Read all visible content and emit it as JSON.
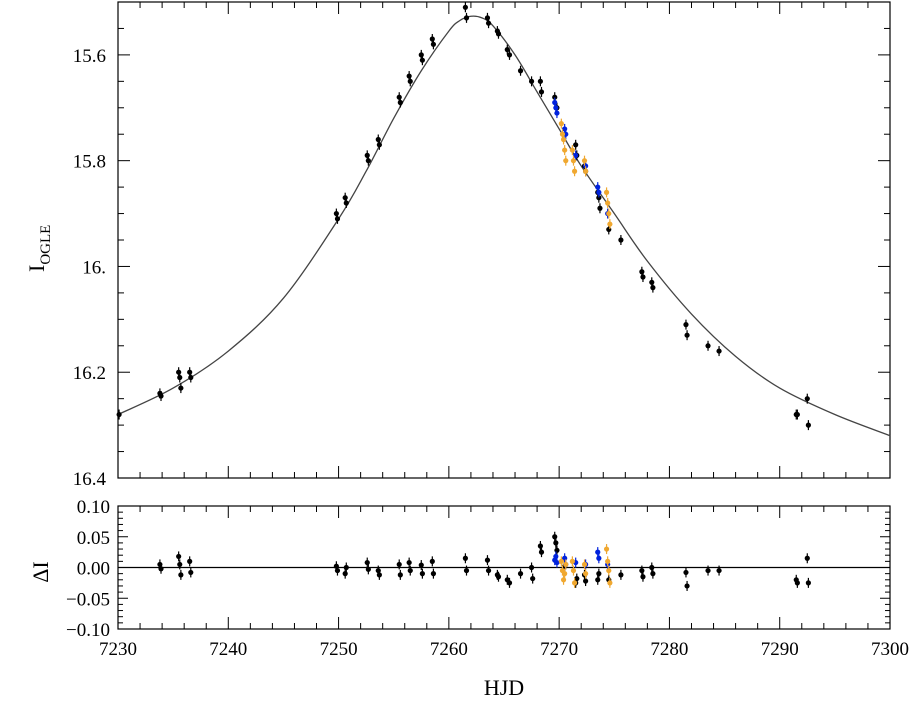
{
  "chart_data": [
    {
      "type": "scatter",
      "ylabel_main": "I",
      "ylabel_sub": "OGLE",
      "xlim": [
        7230,
        7300
      ],
      "ylim": [
        16.4,
        15.5
      ],
      "y_inverted": true,
      "y_ticks": [
        15.6,
        15.8,
        16.0,
        16.2,
        16.4
      ],
      "y_tick_labels": [
        "15.6",
        "15.8",
        "16.",
        "16.2",
        "16.4"
      ],
      "model_curve": {
        "name": "",
        "color": "#444444",
        "x": [
          7230,
          7235,
          7240,
          7245,
          7250,
          7252.5,
          7255,
          7257.5,
          7260,
          7261,
          7262,
          7263,
          7264,
          7266,
          7268,
          7270,
          7272,
          7275,
          7278,
          7282,
          7286,
          7290,
          7295,
          7300
        ],
        "y": [
          16.28,
          16.23,
          16.16,
          16.06,
          15.91,
          15.82,
          15.72,
          15.63,
          15.555,
          15.535,
          15.527,
          15.53,
          15.545,
          15.6,
          15.67,
          15.74,
          15.81,
          15.9,
          15.99,
          16.09,
          16.17,
          16.23,
          16.28,
          16.32
        ]
      },
      "series": [
        {
          "name": "",
          "color": "#000000",
          "points": [
            [
              7230.1,
              16.28
            ],
            [
              7233.8,
              16.24
            ],
            [
              7233.9,
              16.245
            ],
            [
              7235.5,
              16.2
            ],
            [
              7235.6,
              16.21
            ],
            [
              7235.7,
              16.23
            ],
            [
              7236.5,
              16.2
            ],
            [
              7236.6,
              16.21
            ],
            [
              7249.8,
              15.9
            ],
            [
              7249.9,
              15.91
            ],
            [
              7250.6,
              15.87
            ],
            [
              7250.7,
              15.88
            ],
            [
              7252.6,
              15.79
            ],
            [
              7252.7,
              15.8
            ],
            [
              7253.6,
              15.76
            ],
            [
              7253.7,
              15.77
            ],
            [
              7255.5,
              15.68
            ],
            [
              7255.6,
              15.69
            ],
            [
              7256.4,
              15.64
            ],
            [
              7256.5,
              15.65
            ],
            [
              7257.5,
              15.6
            ],
            [
              7257.6,
              15.61
            ],
            [
              7258.5,
              15.57
            ],
            [
              7258.6,
              15.58
            ],
            [
              7261.5,
              15.51
            ],
            [
              7261.6,
              15.53
            ],
            [
              7263.5,
              15.53
            ],
            [
              7263.6,
              15.54
            ],
            [
              7264.4,
              15.555
            ],
            [
              7264.5,
              15.56
            ],
            [
              7265.3,
              15.59
            ],
            [
              7265.5,
              15.6
            ],
            [
              7266.5,
              15.63
            ],
            [
              7267.5,
              15.65
            ],
            [
              7268.3,
              15.65
            ],
            [
              7268.4,
              15.67
            ],
            [
              7269.6,
              15.68
            ],
            [
              7269.8,
              15.7
            ],
            [
              7271.5,
              15.77
            ],
            [
              7271.6,
              15.79
            ],
            [
              7272.3,
              15.81
            ],
            [
              7272.4,
              15.82
            ],
            [
              7273.5,
              15.86
            ],
            [
              7273.6,
              15.87
            ],
            [
              7273.7,
              15.89
            ],
            [
              7274.5,
              15.93
            ],
            [
              7275.6,
              15.95
            ],
            [
              7277.5,
              16.01
            ],
            [
              7277.6,
              16.02
            ],
            [
              7278.4,
              16.03
            ],
            [
              7278.5,
              16.04
            ],
            [
              7281.5,
              16.11
            ],
            [
              7281.6,
              16.13
            ],
            [
              7283.5,
              16.15
            ],
            [
              7284.5,
              16.16
            ],
            [
              7291.5,
              16.28
            ],
            [
              7291.6,
              16.28
            ],
            [
              7292.5,
              16.25
            ],
            [
              7292.6,
              16.3
            ]
          ]
        },
        {
          "name": "",
          "color": "#0022dd",
          "points": [
            [
              7269.6,
              15.69
            ],
            [
              7269.7,
              15.7
            ],
            [
              7269.8,
              15.71
            ],
            [
              7270.5,
              15.74
            ],
            [
              7270.6,
              15.75
            ],
            [
              7271.5,
              15.79
            ],
            [
              7272.4,
              15.81
            ],
            [
              7273.5,
              15.85
            ],
            [
              7273.6,
              15.86
            ],
            [
              7274.4,
              15.9
            ]
          ]
        },
        {
          "name": "",
          "color": "#f0a830",
          "points": [
            [
              7270.2,
              15.73
            ],
            [
              7270.3,
              15.75
            ],
            [
              7270.4,
              15.76
            ],
            [
              7270.5,
              15.78
            ],
            [
              7270.6,
              15.8
            ],
            [
              7271.2,
              15.78
            ],
            [
              7271.3,
              15.8
            ],
            [
              7271.4,
              15.82
            ],
            [
              7272.3,
              15.8
            ],
            [
              7272.4,
              15.82
            ],
            [
              7274.3,
              15.86
            ],
            [
              7274.4,
              15.88
            ],
            [
              7274.5,
              15.9
            ],
            [
              7274.6,
              15.92
            ]
          ]
        }
      ]
    },
    {
      "type": "scatter",
      "xlabel": "HJD",
      "ylabel": "ΔI",
      "xlim": [
        7230,
        7300
      ],
      "ylim": [
        -0.1,
        0.1
      ],
      "x_ticks": [
        7230,
        7240,
        7250,
        7260,
        7270,
        7280,
        7290,
        7300
      ],
      "x_tick_labels": [
        "7230",
        "7240",
        "7250",
        "7260",
        "7270",
        "7280",
        "7290",
        "7300"
      ],
      "y_ticks": [
        0.1,
        0.05,
        0.0,
        -0.05,
        -0.1
      ],
      "y_tick_labels": [
        "0.10",
        "0.05",
        "0.00",
        "−0.05",
        "−0.10"
      ],
      "zero_line": 0,
      "series": [
        {
          "name": "",
          "color": "#000000",
          "points": [
            [
              7233.8,
              0.005
            ],
            [
              7233.9,
              -0.002
            ],
            [
              7235.5,
              0.018
            ],
            [
              7235.6,
              0.005
            ],
            [
              7235.7,
              -0.012
            ],
            [
              7236.5,
              0.01
            ],
            [
              7236.6,
              -0.008
            ],
            [
              7249.8,
              0.002
            ],
            [
              7249.9,
              -0.005
            ],
            [
              7250.6,
              -0.01
            ],
            [
              7250.7,
              0.0
            ],
            [
              7252.6,
              0.008
            ],
            [
              7252.7,
              -0.003
            ],
            [
              7253.6,
              -0.005
            ],
            [
              7253.7,
              -0.012
            ],
            [
              7255.5,
              0.005
            ],
            [
              7255.6,
              -0.012
            ],
            [
              7256.4,
              0.008
            ],
            [
              7256.5,
              -0.005
            ],
            [
              7257.5,
              0.004
            ],
            [
              7257.6,
              -0.01
            ],
            [
              7258.5,
              0.01
            ],
            [
              7258.6,
              -0.01
            ],
            [
              7261.5,
              0.015
            ],
            [
              7261.6,
              -0.005
            ],
            [
              7263.5,
              0.012
            ],
            [
              7263.6,
              -0.005
            ],
            [
              7264.4,
              -0.012
            ],
            [
              7264.5,
              -0.015
            ],
            [
              7265.3,
              -0.02
            ],
            [
              7265.5,
              -0.025
            ],
            [
              7266.5,
              -0.01
            ],
            [
              7267.5,
              0.0
            ],
            [
              7267.6,
              -0.018
            ],
            [
              7268.3,
              0.035
            ],
            [
              7268.4,
              0.025
            ],
            [
              7269.6,
              0.05
            ],
            [
              7269.7,
              0.04
            ],
            [
              7269.8,
              0.028
            ],
            [
              7270.5,
              0.002
            ],
            [
              7271.5,
              -0.025
            ],
            [
              7271.6,
              -0.018
            ],
            [
              7272.3,
              -0.012
            ],
            [
              7272.4,
              -0.022
            ],
            [
              7273.5,
              -0.02
            ],
            [
              7273.6,
              -0.01
            ],
            [
              7274.5,
              -0.02
            ],
            [
              7275.6,
              -0.012
            ],
            [
              7277.5,
              -0.005
            ],
            [
              7277.6,
              -0.015
            ],
            [
              7278.4,
              0.0
            ],
            [
              7278.5,
              -0.01
            ],
            [
              7281.5,
              -0.008
            ],
            [
              7281.6,
              -0.03
            ],
            [
              7283.5,
              -0.005
            ],
            [
              7284.5,
              -0.005
            ],
            [
              7291.5,
              -0.02
            ],
            [
              7291.6,
              -0.025
            ],
            [
              7292.5,
              0.015
            ],
            [
              7292.6,
              -0.025
            ]
          ]
        },
        {
          "name": "",
          "color": "#0022dd",
          "points": [
            [
              7269.6,
              0.012
            ],
            [
              7269.7,
              0.018
            ],
            [
              7269.8,
              0.008
            ],
            [
              7270.5,
              0.015
            ],
            [
              7270.6,
              0.005
            ],
            [
              7271.5,
              0.008
            ],
            [
              7272.4,
              0.005
            ],
            [
              7273.5,
              0.025
            ],
            [
              7273.6,
              0.015
            ],
            [
              7274.4,
              0.005
            ]
          ]
        },
        {
          "name": "",
          "color": "#f0a830",
          "points": [
            [
              7270.2,
              0.01
            ],
            [
              7270.3,
              -0.005
            ],
            [
              7270.4,
              -0.02
            ],
            [
              7270.5,
              -0.01
            ],
            [
              7270.6,
              0.005
            ],
            [
              7271.2,
              0.01
            ],
            [
              7271.3,
              -0.005
            ],
            [
              7271.4,
              -0.025
            ],
            [
              7272.3,
              0.005
            ],
            [
              7272.4,
              -0.01
            ],
            [
              7274.3,
              0.03
            ],
            [
              7274.4,
              0.01
            ],
            [
              7274.5,
              -0.005
            ],
            [
              7274.6,
              -0.025
            ]
          ]
        }
      ]
    }
  ]
}
